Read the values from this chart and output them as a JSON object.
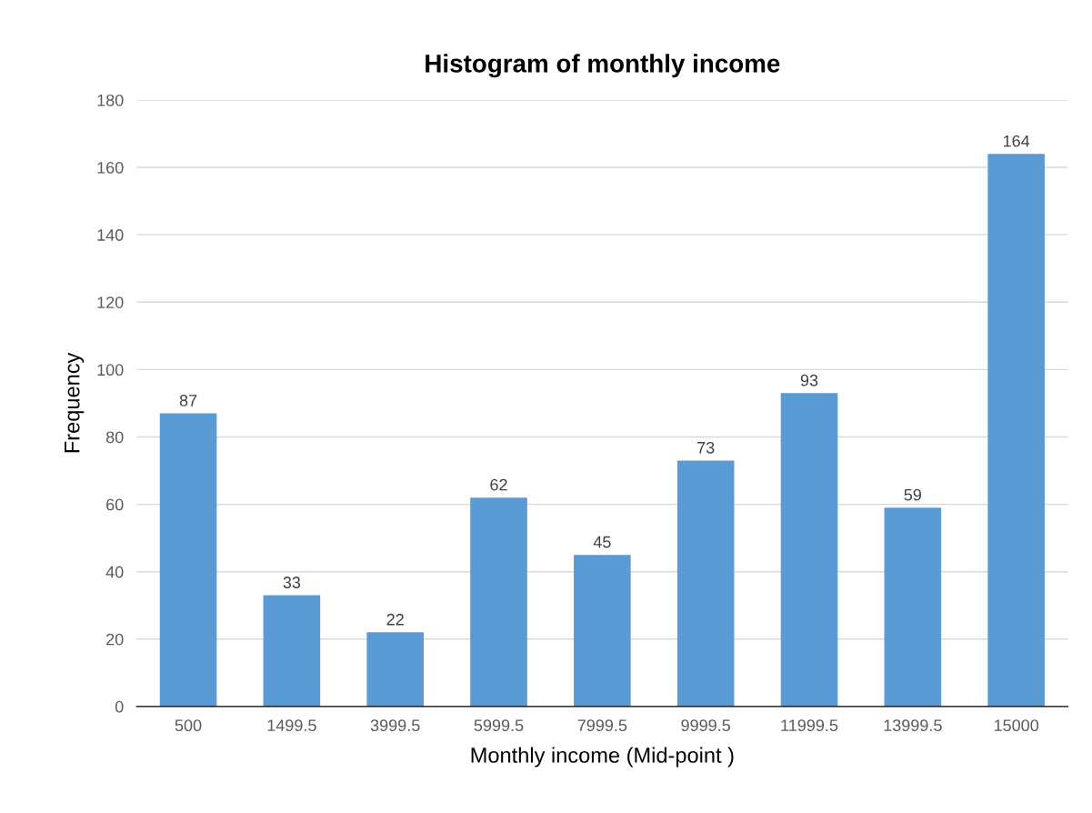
{
  "chart_data": {
    "type": "bar",
    "title": "Histogram of monthly income",
    "xlabel": "Monthly income (Mid-point )",
    "ylabel": "Frequency",
    "categories": [
      "500",
      "1499.5",
      "3999.5",
      "5999.5",
      "7999.5",
      "9999.5",
      "11999.5",
      "13999.5",
      "15000"
    ],
    "values": [
      87,
      33,
      22,
      62,
      45,
      73,
      93,
      59,
      164
    ],
    "color": "#5b9bd5",
    "ylim": [
      0,
      180
    ],
    "yticks": [
      0,
      20,
      40,
      60,
      80,
      100,
      120,
      140,
      160,
      180
    ],
    "grid": "y",
    "data_labels": true,
    "legend": false
  }
}
